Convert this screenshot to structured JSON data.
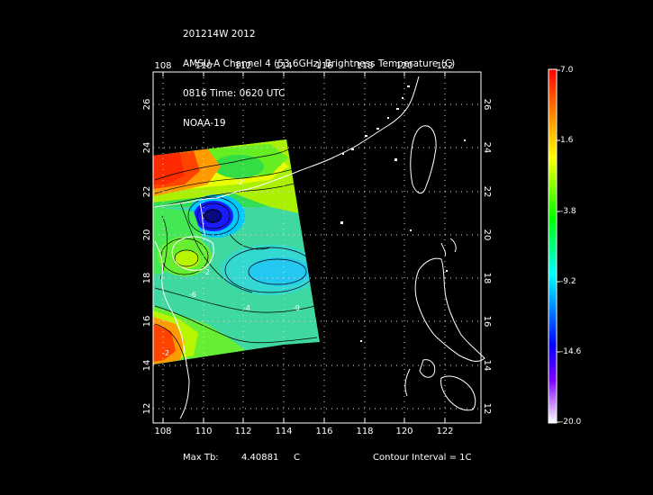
{
  "header": {
    "line1": "201214W 2012",
    "line2": "AMSU-A Channel 4 (53.6GHz) Brightness Temperature (C)",
    "line3": "0816 Time: 0620 UTC",
    "line4": "NOAA-19"
  },
  "map": {
    "lon_ticks": [
      "108",
      "110",
      "112",
      "114",
      "116",
      "118",
      "120",
      "122"
    ],
    "lat_ticks": [
      "12",
      "14",
      "16",
      "18",
      "20",
      "22",
      "24",
      "26"
    ],
    "lon_range": [
      107.7,
      123.8
    ],
    "lat_range": [
      11.5,
      27.5
    ],
    "contour_labels": [
      "-2",
      "-4",
      "-2",
      "-6",
      "-2",
      "-9"
    ],
    "swath_colors": {
      "red": "#ff2a00",
      "orange": "#ff9a00",
      "yellow": "#e8ff00",
      "green": "#33e833",
      "cyan": "#33e6c0",
      "sky": "#00c8ff",
      "blue": "#1a1aff",
      "navy": "#0a0a80"
    }
  },
  "colorbar": {
    "labels": [
      "7.0",
      "1.6",
      "-3.8",
      "-9.2",
      "-14.6",
      "-20.0"
    ],
    "stops": [
      "#ff0000",
      "#ff7f00",
      "#ffff00",
      "#00ff00",
      "#00ffff",
      "#0080ff",
      "#0000ff",
      "#8000ff",
      "#ffffff"
    ]
  },
  "footer": {
    "max_tb_label": "Max Tb:",
    "max_tb_value": "4.40881",
    "max_tb_unit": "C",
    "contour_interval": "Contour Interval = 1C"
  }
}
